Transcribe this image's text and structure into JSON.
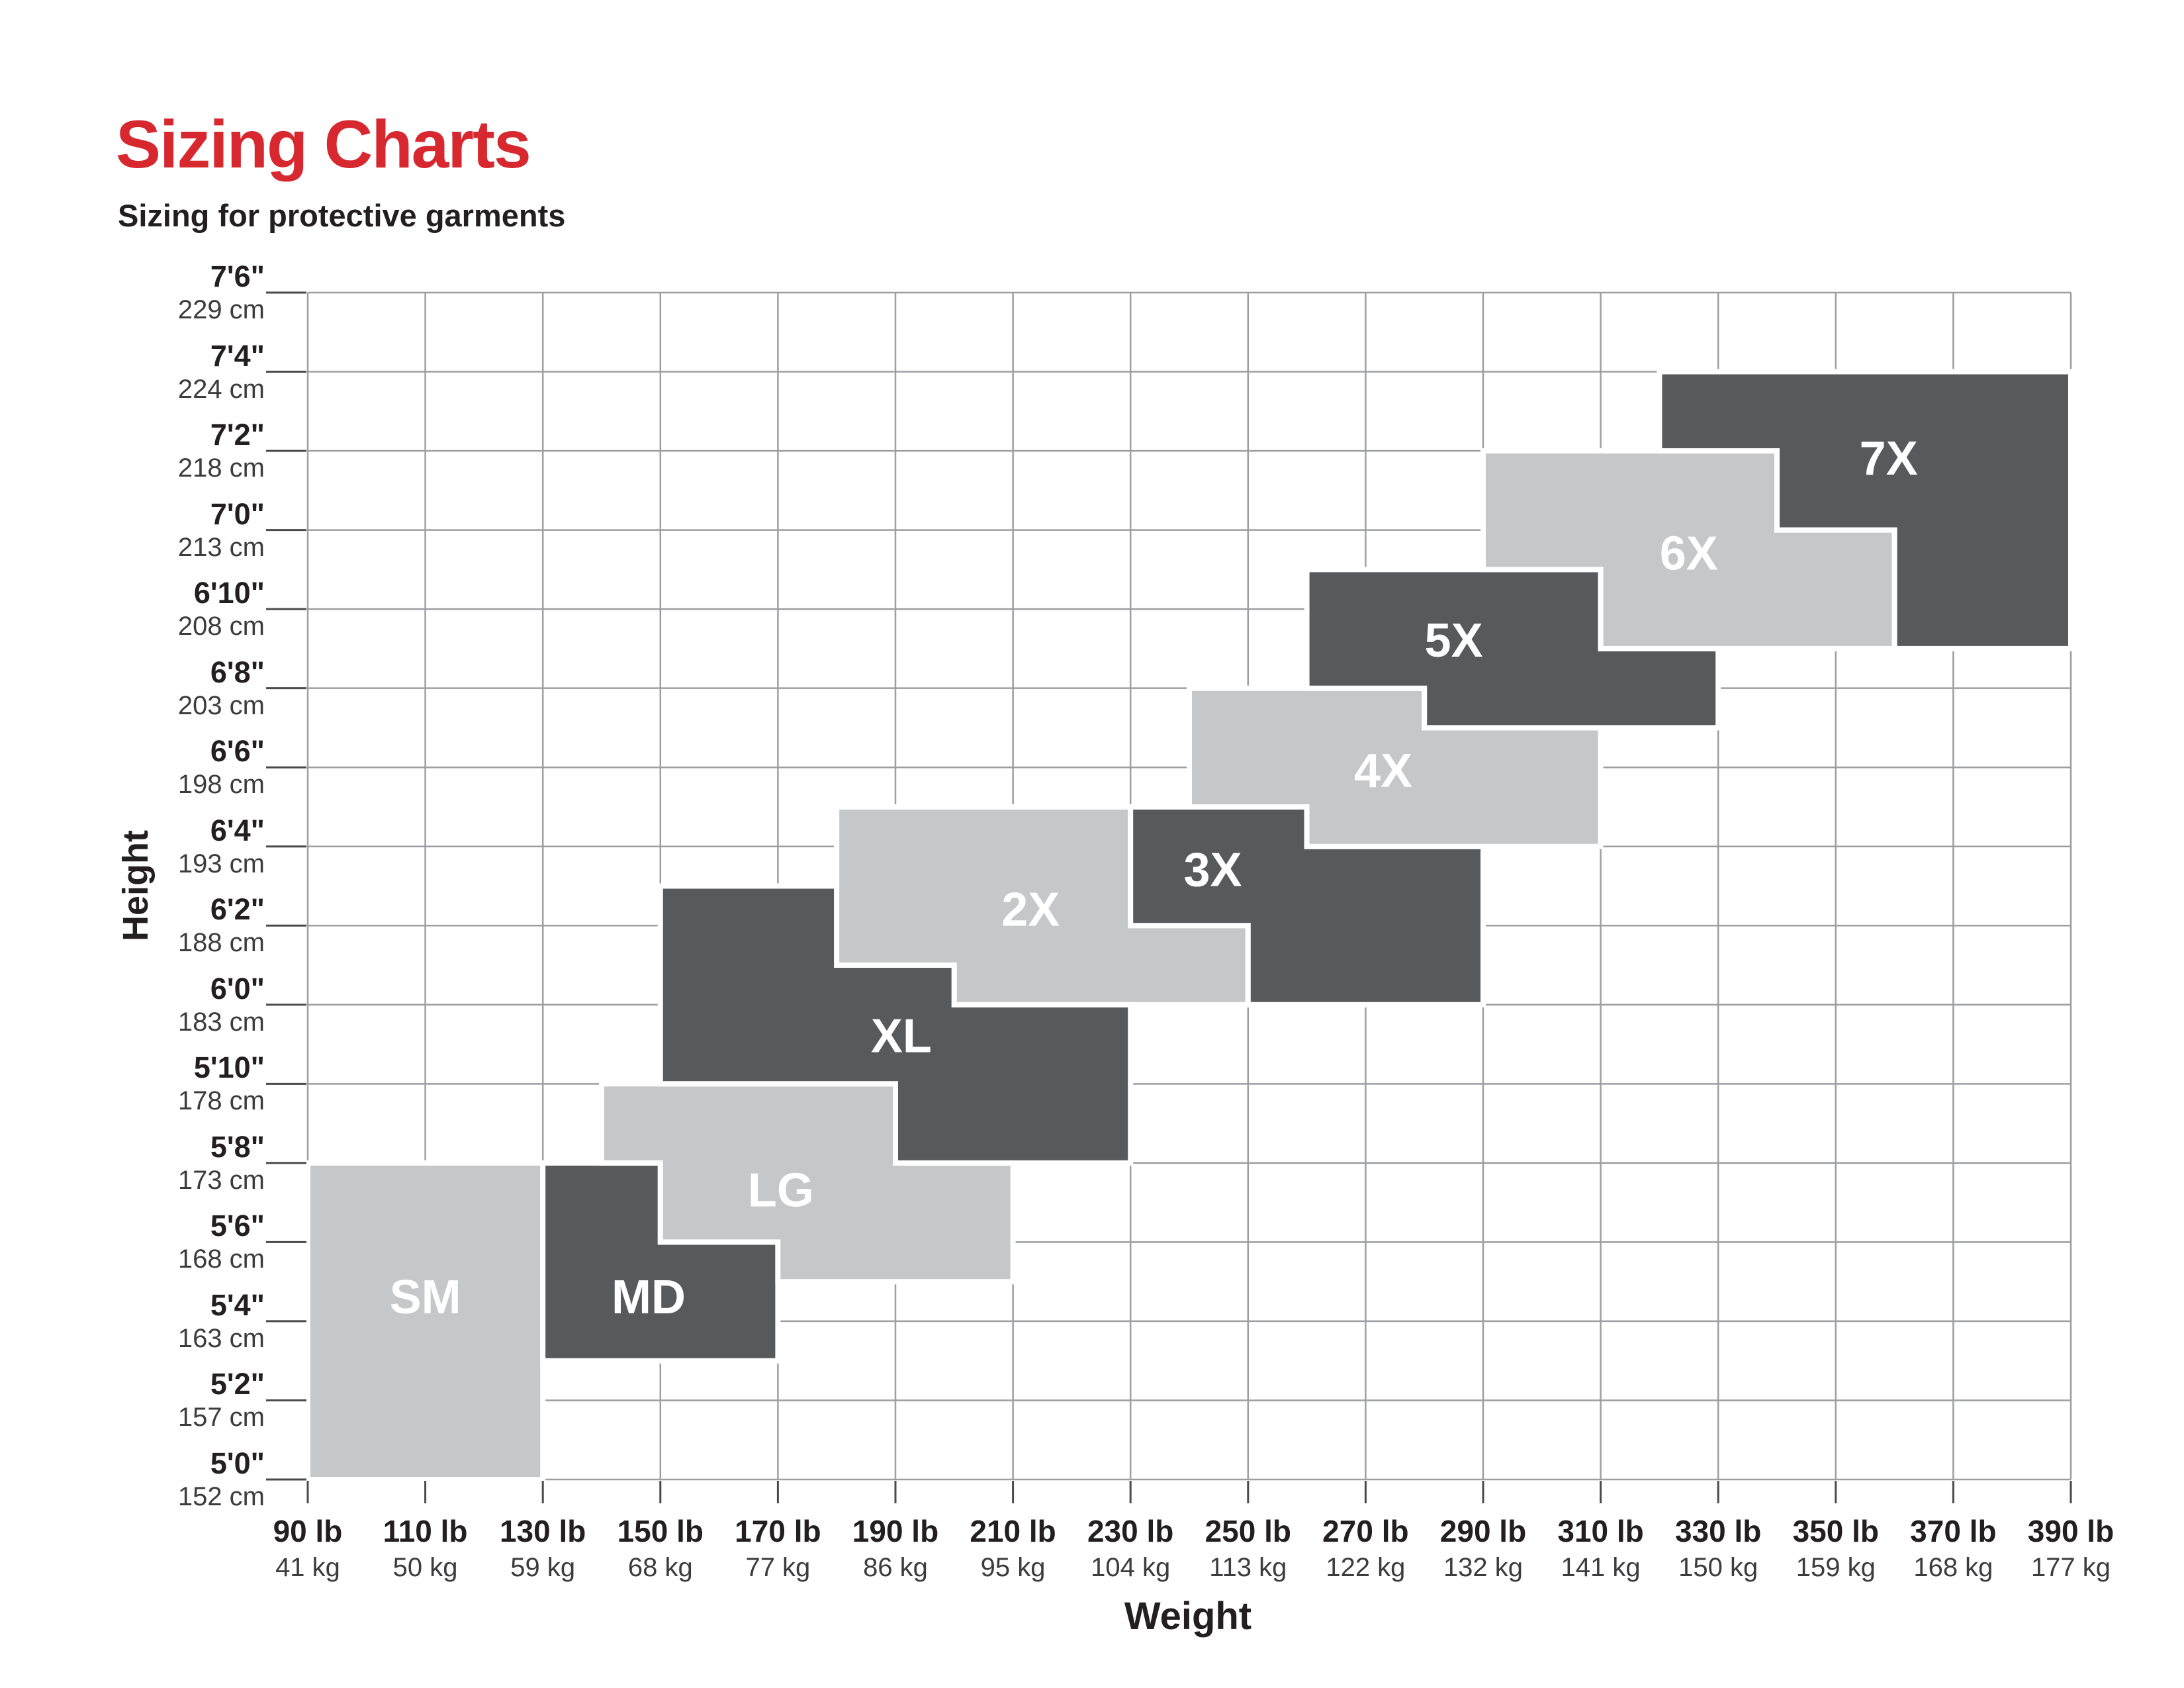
{
  "page": {
    "title": "Sizing Charts",
    "subtitle": "Sizing for protective garments"
  },
  "colors": {
    "title_red": "#d7282f",
    "light_block": "#c6c7c9",
    "dark_block": "#58595b",
    "grid_line": "#9c9ea1",
    "tick_mark": "#4a4a4b",
    "axis_text": "#231f20",
    "axis_text_secondary": "#3c3c3e",
    "block_label": "#ffffff",
    "background": "#ffffff"
  },
  "chart_data": {
    "type": "area",
    "variant": "stepped-size-regions",
    "title": "Sizing Charts",
    "subtitle": "Sizing for protective garments",
    "grid": true,
    "legend": "none",
    "x_axis": {
      "title": "Weight",
      "range_lb": [
        90,
        390
      ],
      "tick_step_lb": 20,
      "ticks": [
        {
          "lb": 90,
          "label_lb": "90 lb",
          "label_kg": "41 kg"
        },
        {
          "lb": 110,
          "label_lb": "110 lb",
          "label_kg": "50 kg"
        },
        {
          "lb": 130,
          "label_lb": "130 lb",
          "label_kg": "59 kg"
        },
        {
          "lb": 150,
          "label_lb": "150 lb",
          "label_kg": "68 kg"
        },
        {
          "lb": 170,
          "label_lb": "170 lb",
          "label_kg": "77 kg"
        },
        {
          "lb": 190,
          "label_lb": "190 lb",
          "label_kg": "86 kg"
        },
        {
          "lb": 210,
          "label_lb": "210 lb",
          "label_kg": "95 kg"
        },
        {
          "lb": 230,
          "label_lb": "230 lb",
          "label_kg": "104 kg"
        },
        {
          "lb": 250,
          "label_lb": "250 lb",
          "label_kg": "113 kg"
        },
        {
          "lb": 270,
          "label_lb": "270 lb",
          "label_kg": "122 kg"
        },
        {
          "lb": 290,
          "label_lb": "290 lb",
          "label_kg": "132 kg"
        },
        {
          "lb": 310,
          "label_lb": "310 lb",
          "label_kg": "141 kg"
        },
        {
          "lb": 330,
          "label_lb": "330 lb",
          "label_kg": "150 kg"
        },
        {
          "lb": 350,
          "label_lb": "350 lb",
          "label_kg": "159 kg"
        },
        {
          "lb": 370,
          "label_lb": "370 lb",
          "label_kg": "168 kg"
        },
        {
          "lb": 390,
          "label_lb": "390 lb",
          "label_kg": "177 kg"
        }
      ]
    },
    "y_axis": {
      "title": "Height",
      "range_in": [
        60,
        90
      ],
      "tick_step_in": 2,
      "ticks": [
        {
          "in": 90,
          "label_ft": "7'6\"",
          "label_cm": "229 cm"
        },
        {
          "in": 88,
          "label_ft": "7'4\"",
          "label_cm": "224 cm"
        },
        {
          "in": 86,
          "label_ft": "7'2\"",
          "label_cm": "218 cm"
        },
        {
          "in": 84,
          "label_ft": "7'0\"",
          "label_cm": "213 cm"
        },
        {
          "in": 82,
          "label_ft": "6'10\"",
          "label_cm": "208 cm"
        },
        {
          "in": 80,
          "label_ft": "6'8\"",
          "label_cm": "203 cm"
        },
        {
          "in": 78,
          "label_ft": "6'6\"",
          "label_cm": "198 cm"
        },
        {
          "in": 76,
          "label_ft": "6'4\"",
          "label_cm": "193 cm"
        },
        {
          "in": 74,
          "label_ft": "6'2\"",
          "label_cm": "188 cm"
        },
        {
          "in": 72,
          "label_ft": "6'0\"",
          "label_cm": "183 cm"
        },
        {
          "in": 70,
          "label_ft": "5'10\"",
          "label_cm": "178 cm"
        },
        {
          "in": 68,
          "label_ft": "5'8\"",
          "label_cm": "173 cm"
        },
        {
          "in": 66,
          "label_ft": "5'6\"",
          "label_cm": "168 cm"
        },
        {
          "in": 64,
          "label_ft": "5'4\"",
          "label_cm": "163 cm"
        },
        {
          "in": 62,
          "label_ft": "5'2\"",
          "label_cm": "157 cm"
        },
        {
          "in": 60,
          "label_ft": "5'0\"",
          "label_cm": "152 cm"
        }
      ]
    },
    "sizes": [
      {
        "label": "SM",
        "shade": "light",
        "polygon_lb_in": [
          [
            90,
            68
          ],
          [
            130,
            68
          ],
          [
            130,
            60
          ],
          [
            90,
            60
          ]
        ],
        "label_at_lb_in": [
          110,
          64.6
        ]
      },
      {
        "label": "MD",
        "shade": "dark",
        "polygon_lb_in": [
          [
            130,
            68
          ],
          [
            150,
            68
          ],
          [
            150,
            66
          ],
          [
            170,
            66
          ],
          [
            170,
            63
          ],
          [
            130,
            63
          ]
        ],
        "label_at_lb_in": [
          148,
          64.6
        ]
      },
      {
        "label": "LG",
        "shade": "light",
        "polygon_lb_in": [
          [
            140,
            70
          ],
          [
            190,
            70
          ],
          [
            190,
            68
          ],
          [
            210,
            68
          ],
          [
            210,
            65
          ],
          [
            170,
            65
          ],
          [
            170,
            66
          ],
          [
            150,
            66
          ],
          [
            150,
            68
          ],
          [
            140,
            68
          ]
        ],
        "label_at_lb_in": [
          170.5,
          67.3
        ]
      },
      {
        "label": "XL",
        "shade": "dark",
        "polygon_lb_in": [
          [
            150,
            75
          ],
          [
            180,
            75
          ],
          [
            180,
            73
          ],
          [
            200,
            73
          ],
          [
            200,
            72
          ],
          [
            230,
            72
          ],
          [
            230,
            68
          ],
          [
            190,
            68
          ],
          [
            190,
            70
          ],
          [
            150,
            70
          ]
        ],
        "label_at_lb_in": [
          191,
          71.2
        ]
      },
      {
        "label": "2X",
        "shade": "light",
        "polygon_lb_in": [
          [
            180,
            77
          ],
          [
            230,
            77
          ],
          [
            230,
            74
          ],
          [
            250,
            74
          ],
          [
            250,
            72
          ],
          [
            200,
            72
          ],
          [
            200,
            73
          ],
          [
            180,
            73
          ]
        ],
        "label_at_lb_in": [
          213,
          74.4
        ]
      },
      {
        "label": "3X",
        "shade": "dark",
        "polygon_lb_in": [
          [
            230,
            77
          ],
          [
            260,
            77
          ],
          [
            260,
            76
          ],
          [
            290,
            76
          ],
          [
            290,
            72
          ],
          [
            250,
            72
          ],
          [
            250,
            74
          ],
          [
            230,
            74
          ]
        ],
        "label_at_lb_in": [
          244,
          75.4
        ]
      },
      {
        "label": "4X",
        "shade": "light",
        "polygon_lb_in": [
          [
            240,
            80
          ],
          [
            280,
            80
          ],
          [
            280,
            79
          ],
          [
            310,
            79
          ],
          [
            310,
            76
          ],
          [
            260,
            76
          ],
          [
            260,
            77
          ],
          [
            240,
            77
          ]
        ],
        "label_at_lb_in": [
          273,
          77.9
        ]
      },
      {
        "label": "5X",
        "shade": "dark",
        "polygon_lb_in": [
          [
            260,
            83
          ],
          [
            310,
            83
          ],
          [
            310,
            81
          ],
          [
            330,
            81
          ],
          [
            330,
            79
          ],
          [
            280,
            79
          ],
          [
            280,
            80
          ],
          [
            260,
            80
          ]
        ],
        "label_at_lb_in": [
          285,
          81.2
        ]
      },
      {
        "label": "6X",
        "shade": "light",
        "polygon_lb_in": [
          [
            290,
            86
          ],
          [
            340,
            86
          ],
          [
            340,
            84
          ],
          [
            360,
            84
          ],
          [
            360,
            81
          ],
          [
            310,
            81
          ],
          [
            310,
            83
          ],
          [
            290,
            83
          ]
        ],
        "label_at_lb_in": [
          325,
          83.4
        ]
      },
      {
        "label": "7X",
        "shade": "dark",
        "polygon_lb_in": [
          [
            320,
            88
          ],
          [
            390,
            88
          ],
          [
            390,
            81
          ],
          [
            360,
            81
          ],
          [
            360,
            84
          ],
          [
            340,
            84
          ],
          [
            340,
            86
          ],
          [
            320,
            86
          ]
        ],
        "label_at_lb_in": [
          359,
          85.8
        ]
      }
    ]
  }
}
